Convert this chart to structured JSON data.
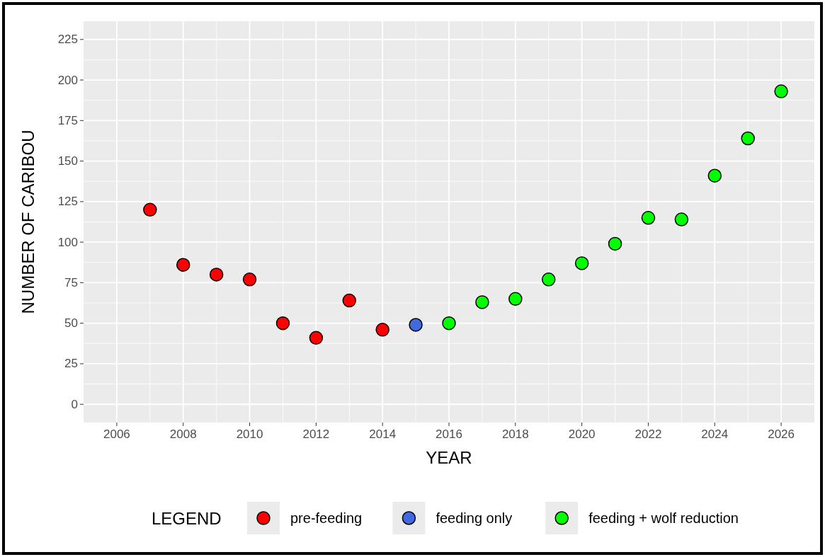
{
  "chart_data": {
    "type": "scatter",
    "xlabel": "YEAR",
    "ylabel": "NUMBER OF CARIBOU",
    "legend_title": "LEGEND",
    "legend": "bottom",
    "grid": true,
    "marker": "circle",
    "xlim": [
      2005,
      2027
    ],
    "xticks": [
      2006,
      2008,
      2010,
      2012,
      2014,
      2016,
      2018,
      2020,
      2022,
      2024,
      2026
    ],
    "ylim": [
      -11.25,
      236.25
    ],
    "yticks": [
      0,
      25,
      50,
      75,
      100,
      125,
      150,
      175,
      200,
      225
    ],
    "series": [
      {
        "name": "pre-feeding",
        "color": "#ff0000",
        "x": [
          2007,
          2008,
          2009,
          2010,
          2011,
          2012,
          2013,
          2014
        ],
        "values": [
          120,
          86,
          80,
          77,
          50,
          41,
          64,
          46
        ]
      },
      {
        "name": "feeding only",
        "color": "#4169e1",
        "x": [
          2015
        ],
        "values": [
          49
        ]
      },
      {
        "name": "feeding + wolf reduction",
        "color": "#00ff00",
        "x": [
          2016,
          2017,
          2018,
          2019,
          2020,
          2021,
          2022,
          2023,
          2024,
          2025,
          2026
        ],
        "values": [
          50,
          63,
          65,
          77,
          87,
          99,
          115,
          114,
          141,
          164,
          193
        ]
      }
    ]
  }
}
